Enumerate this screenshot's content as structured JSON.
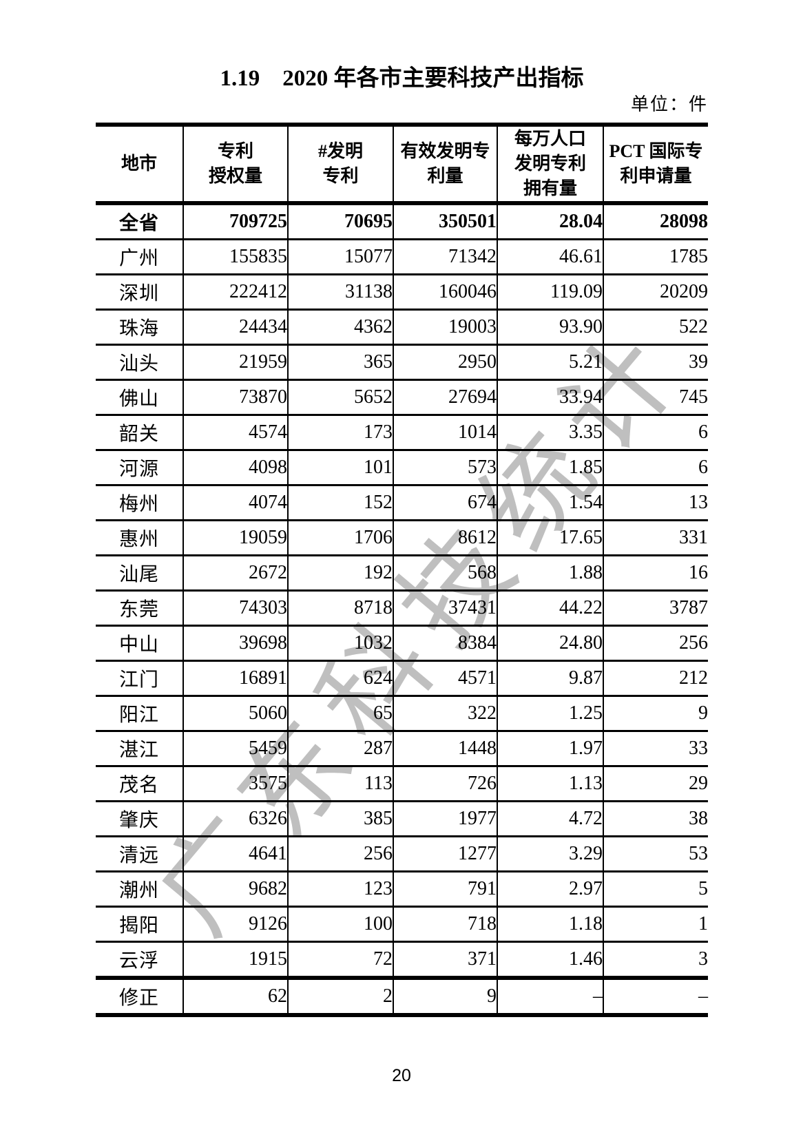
{
  "page": {
    "title": "1.19　2020 年各市主要科技产出指标",
    "unit_label": "单位：件",
    "watermark": "广东科技统计",
    "page_number": "20"
  },
  "table": {
    "columns": [
      {
        "label": "地市"
      },
      {
        "label": "专利\n授权量"
      },
      {
        "label": "#发明\n专利"
      },
      {
        "label": "有效发明专\n利量"
      },
      {
        "label": "每万人口\n发明专利\n拥有量"
      },
      {
        "label": "PCT 国际专\n利申请量"
      }
    ],
    "rows": [
      {
        "cells": [
          "全省",
          "709725",
          "70695",
          "350501",
          "28.04",
          "28098"
        ]
      },
      {
        "cells": [
          "广州",
          "155835",
          "15077",
          "71342",
          "46.61",
          "1785"
        ]
      },
      {
        "cells": [
          "深圳",
          "222412",
          "31138",
          "160046",
          "119.09",
          "20209"
        ]
      },
      {
        "cells": [
          "珠海",
          "24434",
          "4362",
          "19003",
          "93.90",
          "522"
        ]
      },
      {
        "cells": [
          "汕头",
          "21959",
          "365",
          "2950",
          "5.21",
          "39"
        ]
      },
      {
        "cells": [
          "佛山",
          "73870",
          "5652",
          "27694",
          "33.94",
          "745"
        ]
      },
      {
        "cells": [
          "韶关",
          "4574",
          "173",
          "1014",
          "3.35",
          "6"
        ]
      },
      {
        "cells": [
          "河源",
          "4098",
          "101",
          "573",
          "1.85",
          "6"
        ]
      },
      {
        "cells": [
          "梅州",
          "4074",
          "152",
          "674",
          "1.54",
          "13"
        ]
      },
      {
        "cells": [
          "惠州",
          "19059",
          "1706",
          "8612",
          "17.65",
          "331"
        ]
      },
      {
        "cells": [
          "汕尾",
          "2672",
          "192",
          "568",
          "1.88",
          "16"
        ]
      },
      {
        "cells": [
          "东莞",
          "74303",
          "8718",
          "37431",
          "44.22",
          "3787"
        ]
      },
      {
        "cells": [
          "中山",
          "39698",
          "1032",
          "8384",
          "24.80",
          "256"
        ]
      },
      {
        "cells": [
          "江门",
          "16891",
          "624",
          "4571",
          "9.87",
          "212"
        ]
      },
      {
        "cells": [
          "阳江",
          "5060",
          "65",
          "322",
          "1.25",
          "9"
        ]
      },
      {
        "cells": [
          "湛江",
          "5459",
          "287",
          "1448",
          "1.97",
          "33"
        ]
      },
      {
        "cells": [
          "茂名",
          "3575",
          "113",
          "726",
          "1.13",
          "29"
        ]
      },
      {
        "cells": [
          "肇庆",
          "6326",
          "385",
          "1977",
          "4.72",
          "38"
        ]
      },
      {
        "cells": [
          "清远",
          "4641",
          "256",
          "1277",
          "3.29",
          "53"
        ]
      },
      {
        "cells": [
          "潮州",
          "9682",
          "123",
          "791",
          "2.97",
          "5"
        ]
      },
      {
        "cells": [
          "揭阳",
          "9126",
          "100",
          "718",
          "1.18",
          "1"
        ]
      },
      {
        "cells": [
          "云浮",
          "1915",
          "72",
          "371",
          "1.46",
          "3"
        ]
      },
      {
        "cells": [
          "修正",
          "62",
          "2",
          "9",
          "–",
          "–"
        ]
      }
    ]
  }
}
